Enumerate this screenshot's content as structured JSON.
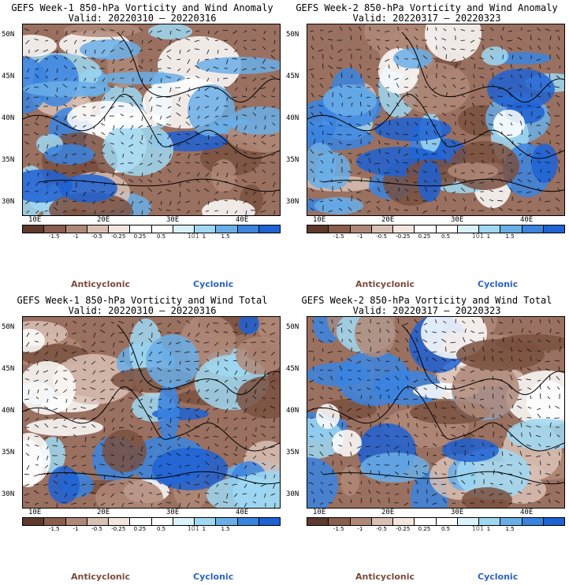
{
  "panels": [
    {
      "title": "GEFS Week-1 850-hPa Vorticity and Wind Anomaly",
      "valid": "Valid: 20220310 – 20220316"
    },
    {
      "title": "GEFS Week-2 850-hPa Vorticity and Wind Anomaly",
      "valid": "Valid: 20220317 – 20220323"
    },
    {
      "title": "GEFS Week-1 850-hPa Vorticity and Wind Total",
      "valid": "Valid: 20220310 – 20220316"
    },
    {
      "title": "GEFS Week-2 850-hPa Vorticity and Wind Total",
      "valid": "Valid: 20220317 – 20220323"
    }
  ],
  "axes": {
    "lat_labels": [
      "50N",
      "45N",
      "40N",
      "35N",
      "30N"
    ],
    "lon_labels": [
      "10E",
      "20E",
      "30E",
      "40E"
    ]
  },
  "colorbar": {
    "labels": [
      "-1.5",
      "-1",
      "-0.5",
      "-0.25",
      "0.25",
      "0.5",
      "1",
      "1.5"
    ],
    "mid_label": "101",
    "colors": [
      "#5e3a2c",
      "#8a5d4c",
      "#b08878",
      "#d8c0b4",
      "#f3e6df",
      "#ffffff",
      "#ffffff",
      "#d9f2fb",
      "#9fd8f2",
      "#6aaee8",
      "#3a84e0",
      "#1f62d4"
    ]
  },
  "legend": {
    "anticyclonic": "Anticyclonic",
    "cyclonic": "Cyclonic"
  }
}
